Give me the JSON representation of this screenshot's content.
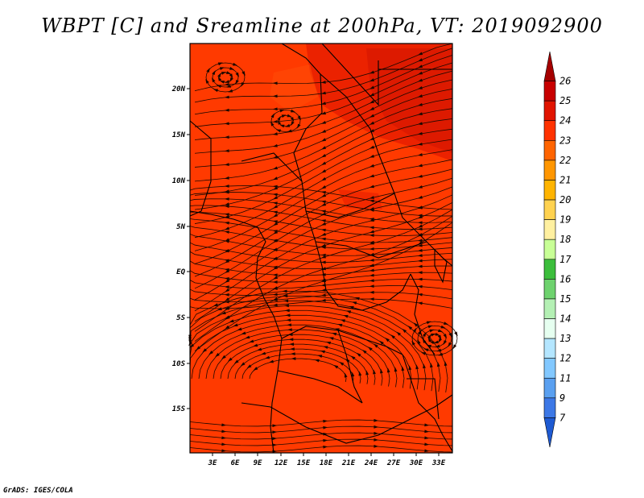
{
  "title": "WBPT [C] and Sreamline at 200hPa, VT: 2019092900",
  "credit": "GrADS: IGES/COLA",
  "map": {
    "fill_color": "#ff3a00",
    "line_color": "#1a0800",
    "lat_labels": [
      "20N",
      "15N",
      "10N",
      "5N",
      "EQ",
      "5S",
      "10S",
      "15S"
    ],
    "lon_labels": [
      "3E",
      "6E",
      "9E",
      "12E",
      "15E",
      "18E",
      "21E",
      "24E",
      "27E",
      "30E",
      "33E"
    ]
  },
  "colorbar": {
    "labels": [
      "26",
      "25",
      "24",
      "23",
      "22",
      "21",
      "20",
      "19",
      "18",
      "17",
      "16",
      "15",
      "14",
      "13",
      "12",
      "11",
      "9",
      "7"
    ],
    "colors": [
      "#a50000",
      "#c80000",
      "#e11400",
      "#ff3200",
      "#ff6400",
      "#ff9600",
      "#ffb400",
      "#ffd250",
      "#fff0a0",
      "#c8ff96",
      "#3cbe3c",
      "#6ed26e",
      "#b4f0b4",
      "#e6fff0",
      "#b4e6ff",
      "#82c8ff",
      "#5aa0f0",
      "#3c78e6",
      "#1e5ad2"
    ]
  }
}
